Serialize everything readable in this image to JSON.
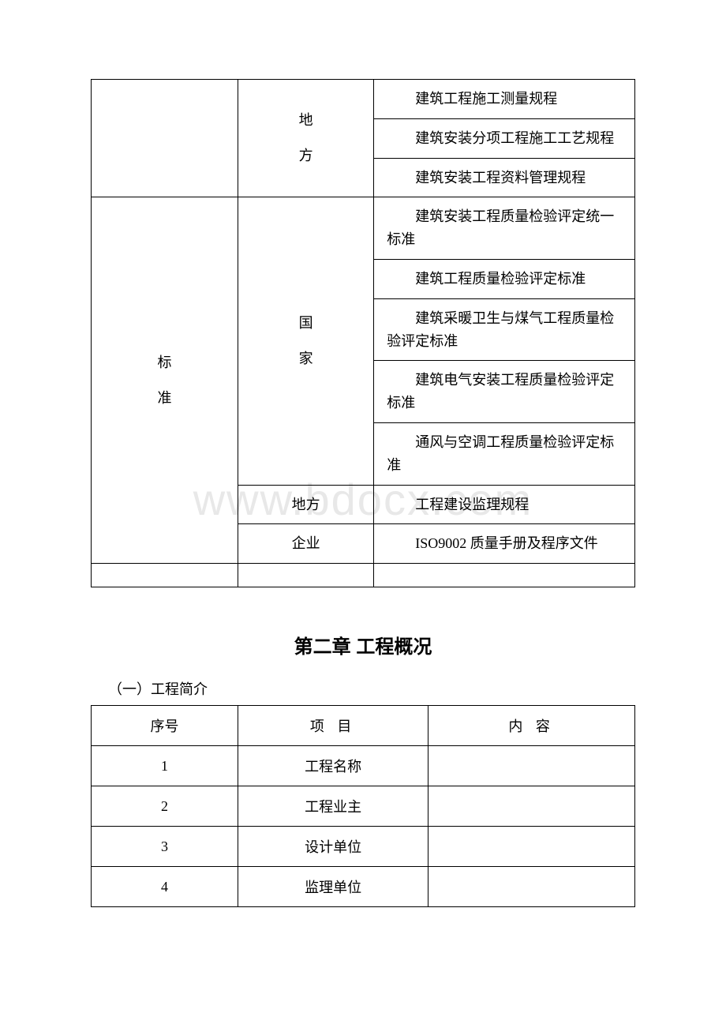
{
  "watermark_text": "www.bdocx.com",
  "table1": {
    "sections": [
      {
        "category": "",
        "category_lines": [],
        "level_lines": [
          "地",
          "方"
        ],
        "docs": [
          "建筑工程施工测量规程",
          "建筑安装分项工程施工工艺规程",
          "建筑安装工程资料管理规程"
        ]
      },
      {
        "category_lines": [
          "标",
          "准"
        ],
        "groups": [
          {
            "level_lines": [
              "国",
              "家"
            ],
            "docs": [
              "建筑安装工程质量检验评定统一标准",
              "建筑工程质量检验评定标准",
              "建筑采暖卫生与煤气工程质量检验评定标准",
              "建筑电气安装工程质量检验评定标准",
              "通风与空调工程质量检验评定标准"
            ]
          },
          {
            "level_text": "地方",
            "docs": [
              "工程建设监理规程"
            ]
          },
          {
            "level_text": "企业",
            "docs": [
              "ISO9002 质量手册及程序文件"
            ]
          }
        ]
      }
    ]
  },
  "chapter_title": "第二章 工程概况",
  "section_intro": "（一）工程简介",
  "table2": {
    "headers": {
      "seq": "序号",
      "item": "项 目",
      "content": "内 容"
    },
    "rows": [
      {
        "seq": "1",
        "item": "工程名称",
        "content": ""
      },
      {
        "seq": "2",
        "item": "工程业主",
        "content": ""
      },
      {
        "seq": "3",
        "item": "设计单位",
        "content": ""
      },
      {
        "seq": "4",
        "item": "监理单位",
        "content": ""
      }
    ]
  },
  "colors": {
    "text": "#000000",
    "border": "#000000",
    "background": "#ffffff",
    "watermark": "#e8e8e8"
  },
  "typography": {
    "body_fontsize": 18,
    "heading_fontsize": 24,
    "watermark_fontsize": 56
  }
}
